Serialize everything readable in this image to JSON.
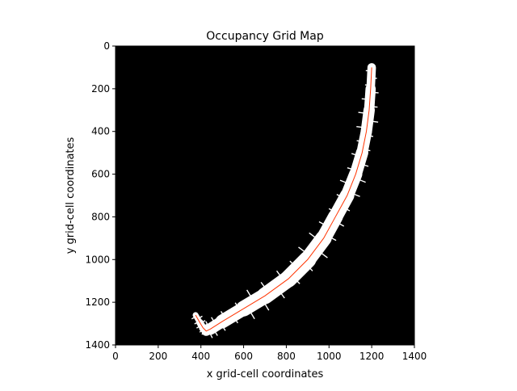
{
  "chart_data": {
    "type": "heatmap",
    "title": "Occupancy Grid Map",
    "xlabel": "x grid-cell coordinates",
    "ylabel": "y grid-cell coordinates",
    "xlim": [
      0,
      1400
    ],
    "ylim": [
      1400,
      0
    ],
    "y_axis_inverted": true,
    "grid": false,
    "background_color": "#000000",
    "free_space_color": "#ffffff",
    "trajectory_color": "#ff3300",
    "xticks": [
      "0",
      "200",
      "400",
      "600",
      "800",
      "1000",
      "1200",
      "1400"
    ],
    "yticks": [
      "0",
      "200",
      "400",
      "600",
      "800",
      "1000",
      "1200",
      "1400"
    ],
    "series": [
      {
        "type": "line",
        "points": [
          [
            1200,
            100
          ],
          [
            1195,
            200
          ],
          [
            1188,
            300
          ],
          [
            1175,
            400
          ],
          [
            1155,
            500
          ],
          [
            1125,
            600
          ],
          [
            1085,
            700
          ],
          [
            1030,
            800
          ],
          [
            975,
            900
          ],
          [
            900,
            1000
          ],
          [
            810,
            1090
          ],
          [
            700,
            1170
          ],
          [
            600,
            1230
          ],
          [
            500,
            1290
          ],
          [
            445,
            1325
          ],
          [
            425,
            1335
          ],
          [
            410,
            1320
          ],
          [
            395,
            1295
          ],
          [
            375,
            1260
          ]
        ]
      }
    ],
    "free_space_halfwidths": [
      20,
      20,
      28,
      25,
      28,
      30,
      32,
      35,
      35,
      40,
      40,
      38,
      35,
      30,
      25,
      20,
      18,
      15,
      12
    ]
  }
}
